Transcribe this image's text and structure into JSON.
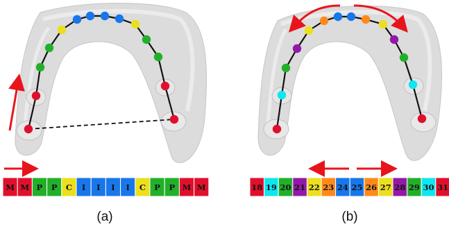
{
  "colors": {
    "red": "#e0102c",
    "green": "#22b02a",
    "yellow": "#ecdf1e",
    "blue": "#1877ea",
    "orange": "#ff8a1a",
    "purple": "#9418a8",
    "cyan": "#0ee6f0",
    "arrow": "#e8141c",
    "gum": "#dcdcdc"
  },
  "panel_a": {
    "caption": "(a)",
    "strip": [
      {
        "label": "M",
        "color": "red"
      },
      {
        "label": "M",
        "color": "red"
      },
      {
        "label": "P",
        "color": "green"
      },
      {
        "label": "P",
        "color": "green"
      },
      {
        "label": "C",
        "color": "yellow"
      },
      {
        "label": "I",
        "color": "blue"
      },
      {
        "label": "I",
        "color": "blue"
      },
      {
        "label": "I",
        "color": "blue"
      },
      {
        "label": "I",
        "color": "blue"
      },
      {
        "label": "C",
        "color": "yellow"
      },
      {
        "label": "P",
        "color": "green"
      },
      {
        "label": "P",
        "color": "green"
      },
      {
        "label": "M",
        "color": "red"
      },
      {
        "label": "M",
        "color": "red"
      }
    ],
    "tooth_colors": [
      "red",
      "red",
      "green",
      "green",
      "yellow",
      "blue",
      "blue",
      "blue",
      "blue",
      "yellow",
      "green",
      "green",
      "red",
      "red"
    ]
  },
  "panel_b": {
    "caption": "(b)",
    "strip": [
      {
        "label": "18",
        "color": "red"
      },
      {
        "label": "19",
        "color": "cyan"
      },
      {
        "label": "20",
        "color": "green"
      },
      {
        "label": "21",
        "color": "purple"
      },
      {
        "label": "22",
        "color": "yellow"
      },
      {
        "label": "23",
        "color": "orange"
      },
      {
        "label": "24",
        "color": "blue"
      },
      {
        "label": "25",
        "color": "blue"
      },
      {
        "label": "26",
        "color": "orange"
      },
      {
        "label": "27",
        "color": "yellow"
      },
      {
        "label": "28",
        "color": "purple"
      },
      {
        "label": "29",
        "color": "green"
      },
      {
        "label": "30",
        "color": "cyan"
      },
      {
        "label": "31",
        "color": "red"
      }
    ],
    "tooth_colors": [
      "red",
      "cyan",
      "green",
      "purple",
      "yellow",
      "orange",
      "blue",
      "blue",
      "orange",
      "yellow",
      "purple",
      "green",
      "cyan",
      "red"
    ]
  }
}
